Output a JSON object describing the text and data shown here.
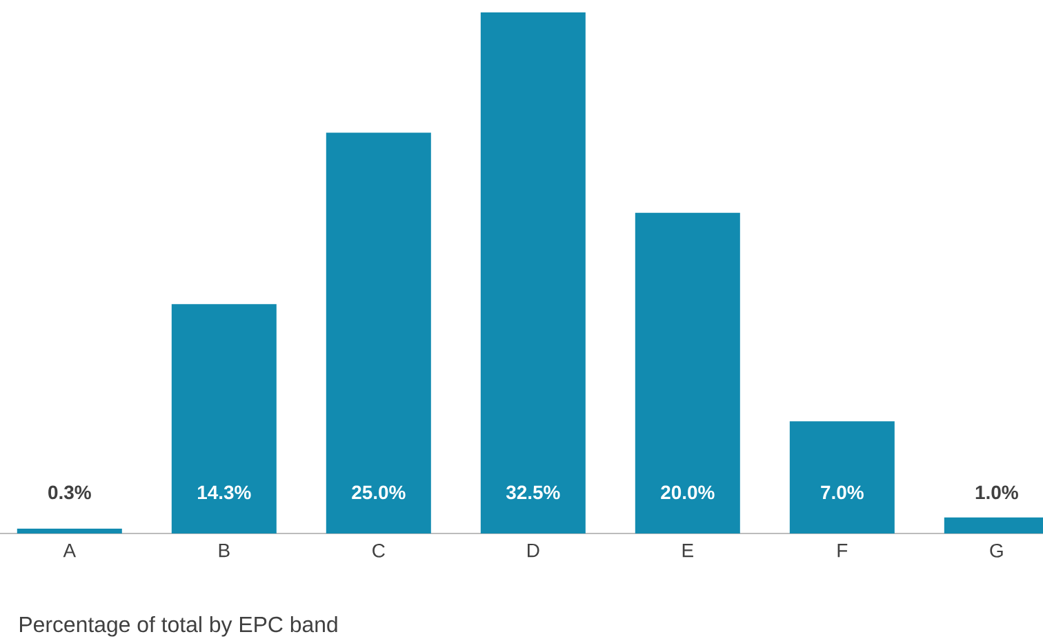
{
  "chart_data": {
    "type": "bar",
    "xlabel": "Percentage of total by EPC band",
    "categories": [
      "A",
      "B",
      "C",
      "D",
      "E",
      "F",
      "G"
    ],
    "values": [
      0.3,
      14.3,
      25.0,
      32.5,
      20.0,
      7.0,
      1.0
    ],
    "value_labels": [
      "0.3%",
      "14.3%",
      "25.0%",
      "32.5%",
      "20.0%",
      "7.0%",
      "1.0%"
    ],
    "color": "#128bb0"
  }
}
